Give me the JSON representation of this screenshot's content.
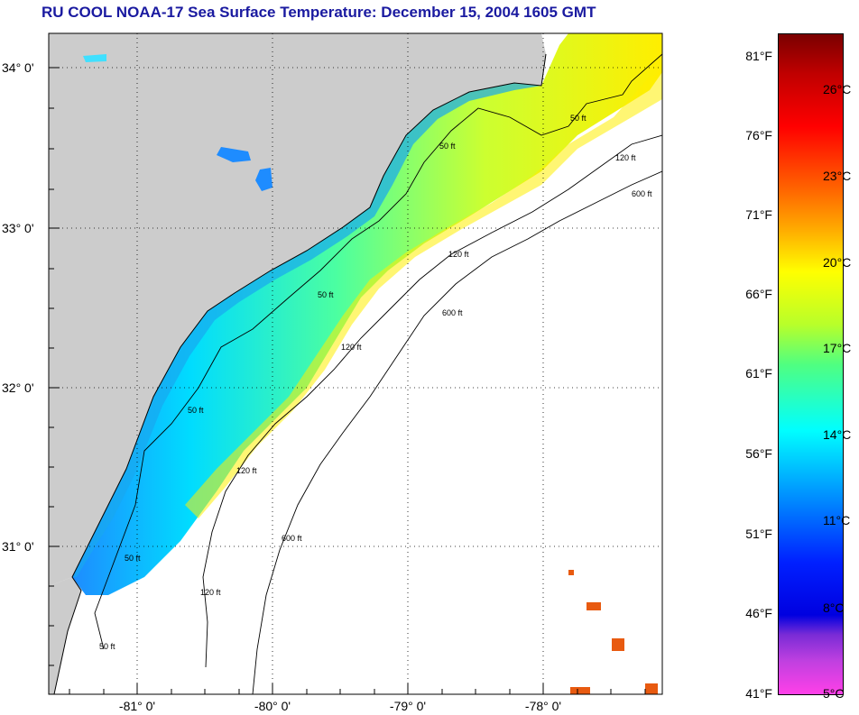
{
  "title": "RU COOL  NOAA-17  Sea Surface Temperature:  December 15, 2004 1605 GMT",
  "map": {
    "lat_labels": [
      "34° 0'",
      "33° 0'",
      "32° 0'",
      "31° 0'"
    ],
    "lon_labels": [
      "-81° 0'",
      "-80° 0'",
      "-79° 0'",
      "-78° 0'"
    ],
    "contour_labels": [
      "50 ft",
      "120 ft",
      "600 ft"
    ]
  },
  "colorbar": {
    "fahrenheit": [
      "81°F",
      "76°F",
      "71°F",
      "66°F",
      "61°F",
      "56°F",
      "51°F",
      "46°F",
      "41°F"
    ],
    "celsius": [
      "26°C",
      "23°C",
      "20°C",
      "17°C",
      "14°C",
      "11°C",
      "8°C",
      "5°C"
    ]
  },
  "colors": {
    "land": "#cccccc",
    "title": "#1a1aa0",
    "frame": "#000000"
  }
}
